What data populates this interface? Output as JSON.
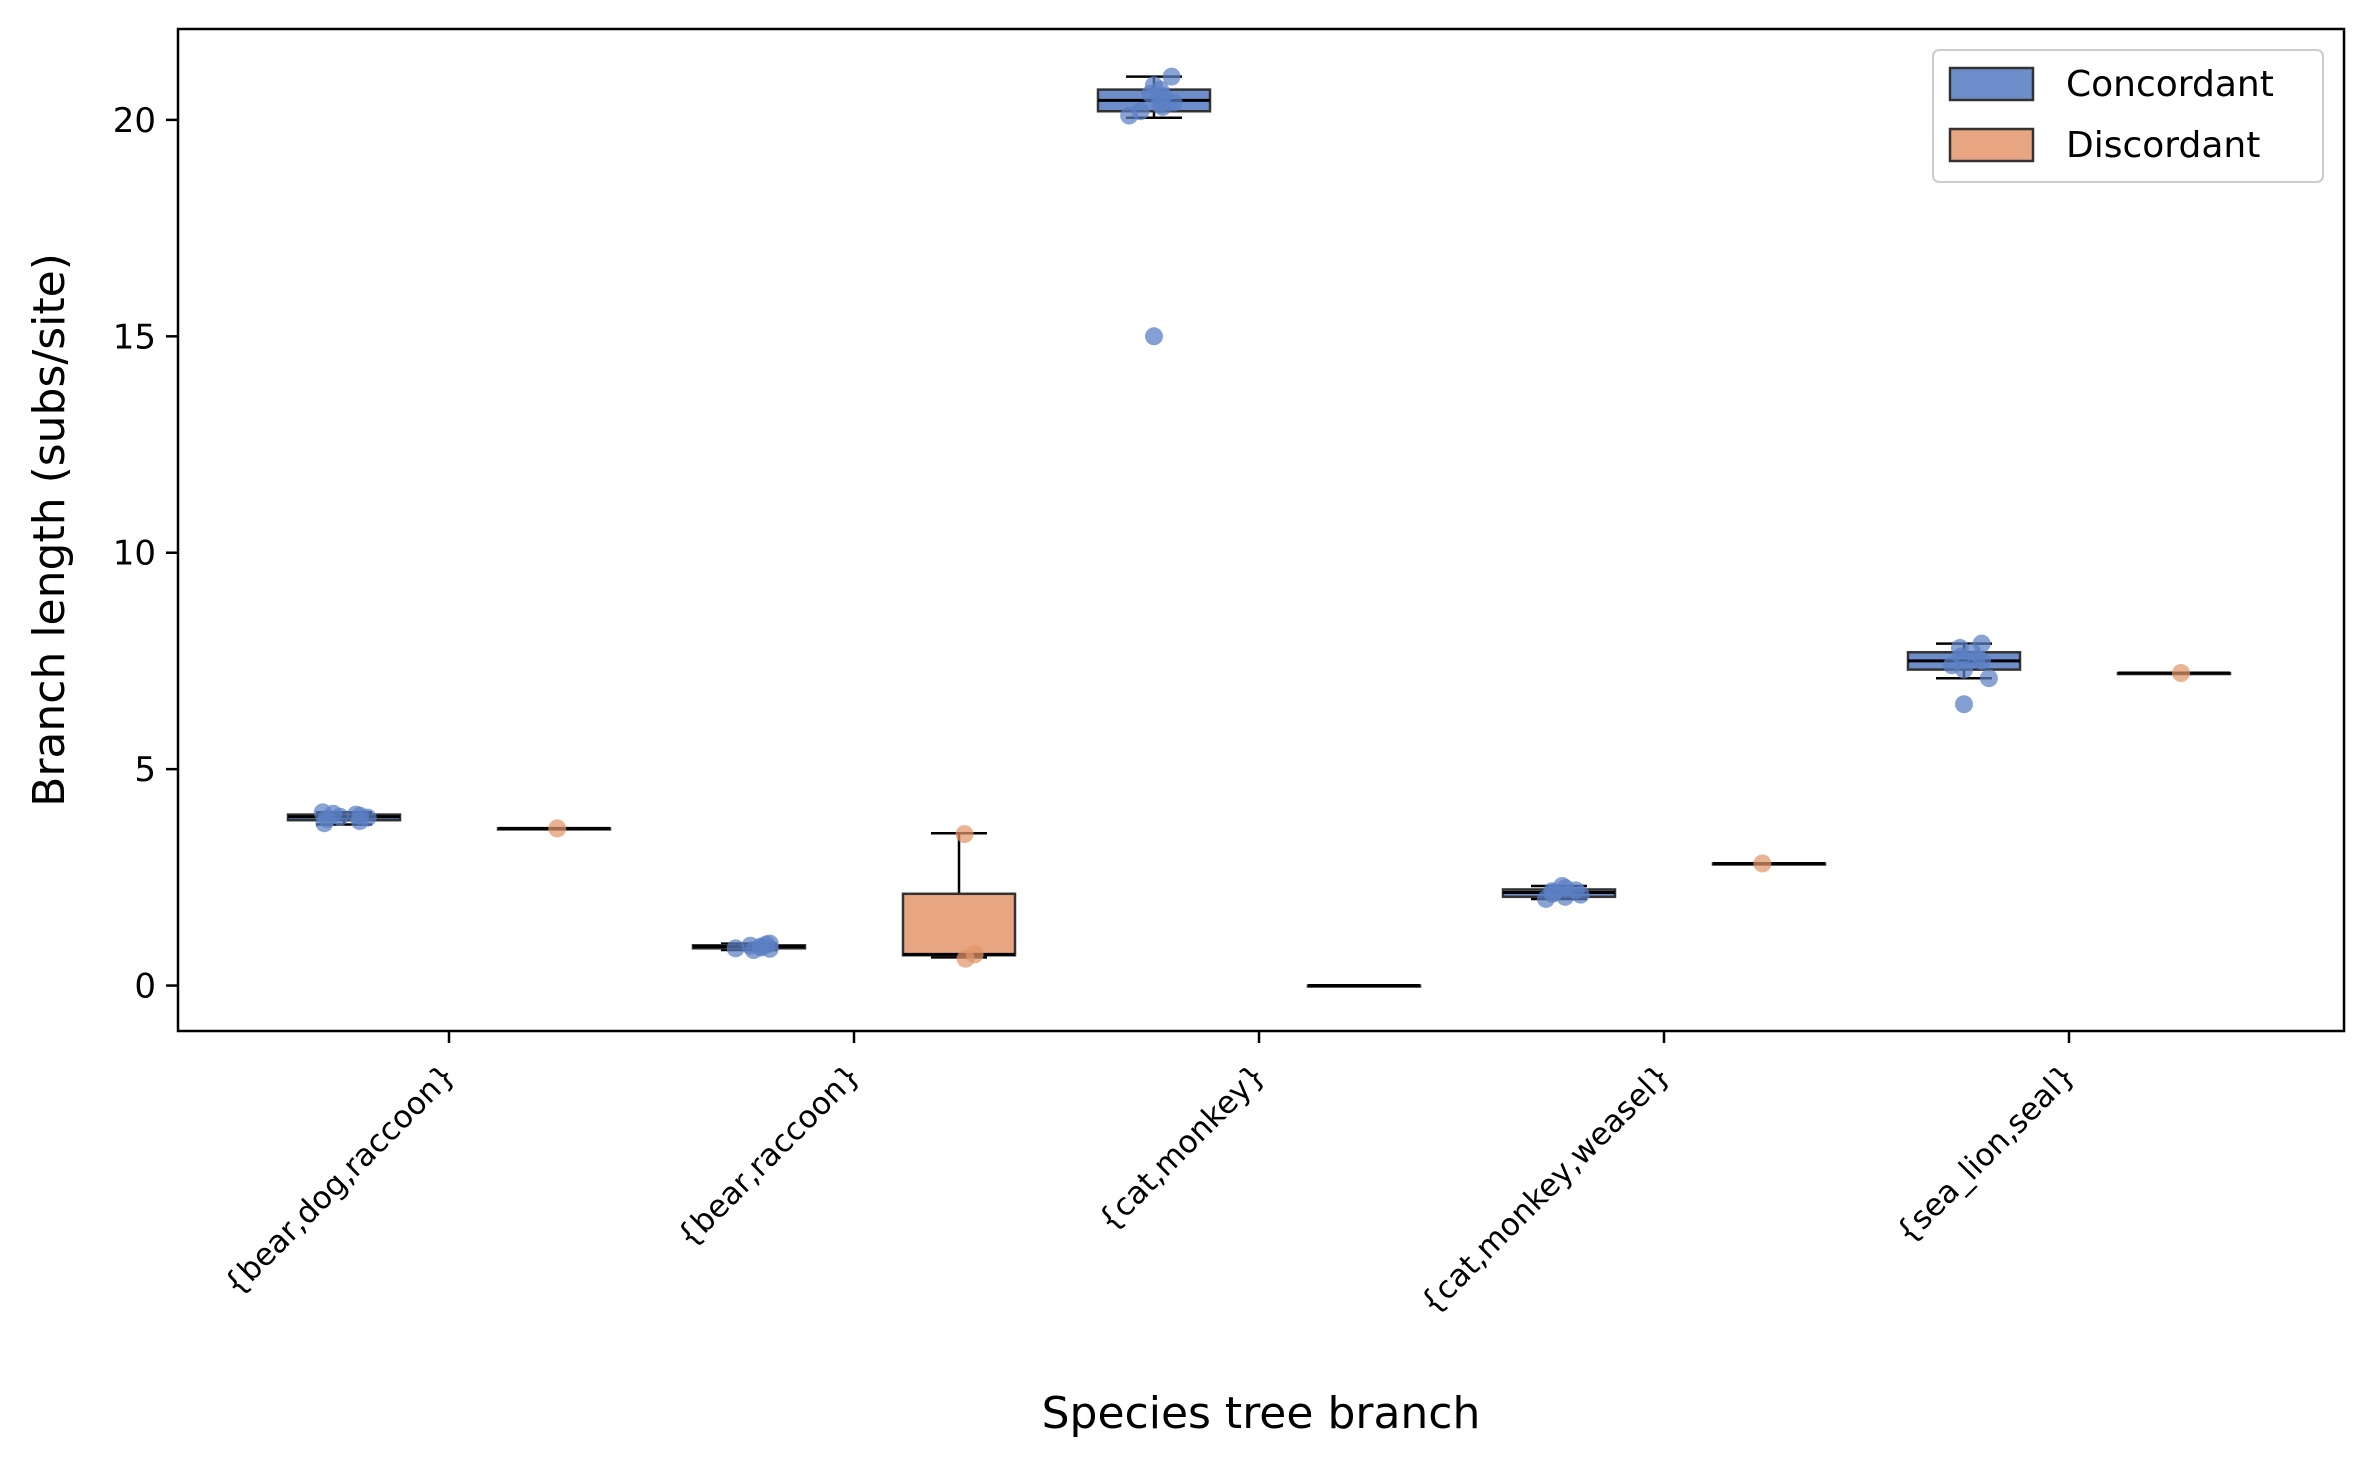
{
  "chart_data": {
    "type": "box",
    "title": "",
    "xlabel": "Species tree branch",
    "ylabel": "Branch length (subs/site)",
    "ylim": [
      -1.05,
      22.1
    ],
    "yticks": [
      0,
      5,
      10,
      15,
      20
    ],
    "ytick_labels": [
      "0",
      "5",
      "10",
      "15",
      "20"
    ],
    "categories": [
      "{bear,dog,raccoon}",
      "{bear,raccoon}",
      "{cat,monkey}",
      "{cat,monkey,weasel}",
      "{sea_lion,seal}"
    ],
    "series": [
      {
        "name": "Concordant",
        "color": "#6d8ecb",
        "point_color": "#5b7fc4",
        "boxes": [
          {
            "whislo": 3.72,
            "q1": 3.82,
            "med": 3.9,
            "q3": 3.95,
            "whishi": 4.0,
            "points": [
              3.95,
              4.0,
              3.9,
              3.92,
              3.85,
              3.8,
              3.75,
              3.88,
              3.97
            ],
            "fliers": []
          },
          {
            "whislo": 0.82,
            "q1": 0.86,
            "med": 0.9,
            "q3": 0.93,
            "whishi": 0.97,
            "points": [
              0.82,
              0.85,
              0.88,
              0.9,
              0.92,
              0.95,
              0.97,
              0.86
            ],
            "fliers": []
          },
          {
            "whislo": 20.05,
            "q1": 20.2,
            "med": 20.45,
            "q3": 20.7,
            "whishi": 21.0,
            "points": [
              21.0,
              20.8,
              20.7,
              20.6,
              20.5,
              20.4,
              20.3,
              20.2,
              20.1,
              20.55,
              20.35
            ],
            "fliers": [
              15.0
            ]
          },
          {
            "whislo": 2.0,
            "q1": 2.05,
            "med": 2.15,
            "q3": 2.22,
            "whishi": 2.3,
            "points": [
              2.3,
              2.25,
              2.2,
              2.15,
              2.1,
              2.05,
              2.0,
              2.18,
              2.12
            ],
            "fliers": []
          },
          {
            "whislo": 7.1,
            "q1": 7.3,
            "med": 7.5,
            "q3": 7.7,
            "whishi": 7.9,
            "points": [
              7.9,
              7.8,
              7.7,
              7.6,
              7.5,
              7.4,
              7.3,
              7.1,
              7.55
            ],
            "fliers": [
              6.5
            ]
          }
        ]
      },
      {
        "name": "Discordant",
        "color": "#e8a581",
        "point_color": "#e0956b",
        "boxes": [
          {
            "whislo": 3.63,
            "q1": 3.63,
            "med": 3.63,
            "q3": 3.63,
            "whishi": 3.63,
            "points": [
              3.63
            ],
            "fliers": []
          },
          {
            "whislo": 0.65,
            "q1": 0.7,
            "med": 0.72,
            "q3": 2.12,
            "whishi": 3.52,
            "points": [
              3.5,
              0.72,
              0.62
            ],
            "fliers": []
          },
          {
            "whislo": 0.0,
            "q1": 0.0,
            "med": 0.0,
            "q3": 0.0,
            "whishi": 0.0,
            "points": [],
            "fliers": []
          },
          {
            "whislo": 2.82,
            "q1": 2.82,
            "med": 2.82,
            "q3": 2.82,
            "whishi": 2.82,
            "points": [
              2.82
            ],
            "fliers": []
          },
          {
            "whislo": 7.22,
            "q1": 7.22,
            "med": 7.22,
            "q3": 7.22,
            "whishi": 7.22,
            "points": [
              7.22
            ],
            "fliers": []
          }
        ]
      }
    ],
    "legend": {
      "position": "top-right",
      "entries": [
        "Concordant",
        "Discordant"
      ]
    }
  }
}
